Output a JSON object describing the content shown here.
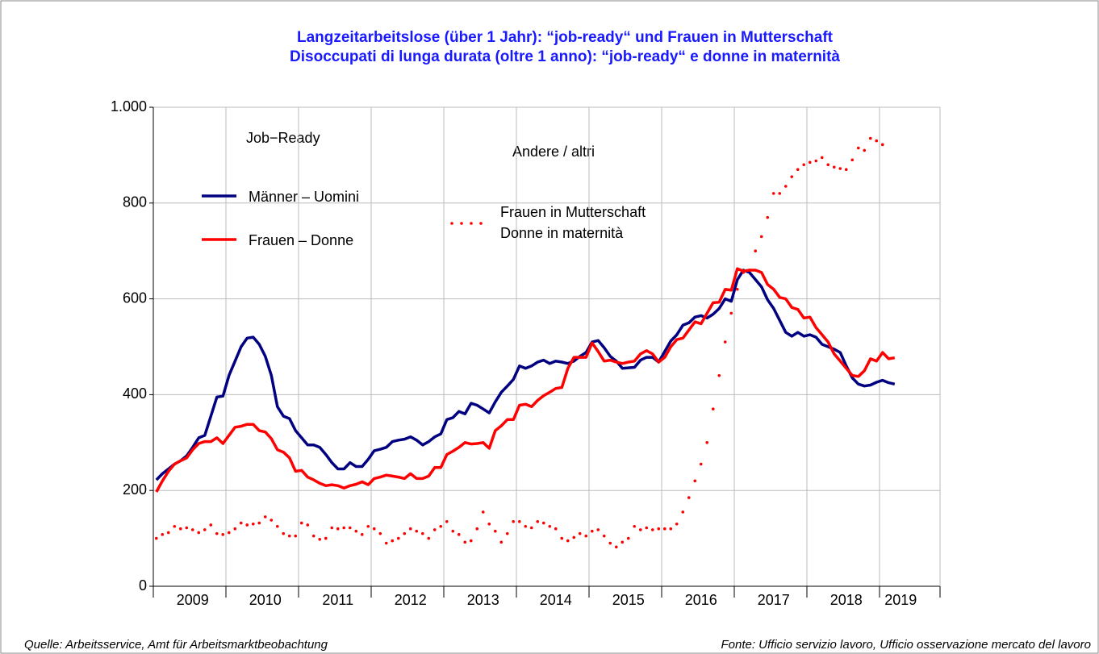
{
  "chart_data": {
    "type": "line",
    "title": "Langzeitarbeitslose (über 1 Jahr): “job-ready“ und Frauen in Mutterschaft",
    "subtitle": "Disoccupati di lunga durata (oltre 1 anno): “job-ready“ e donne in maternità",
    "legend_groups": [
      "Job−Ready",
      "Andere / altri"
    ],
    "source_left": "Quelle: Arbeitsservice, Amt für Arbeitsmarktbeobachtung",
    "source_right": "Fonte: Ufficio servizio lavoro, Ufficio osservazione mercato del lavoro",
    "categories": [
      null,
      null,
      null,
      null,
      null,
      null,
      "2009",
      null,
      null,
      null,
      null,
      null,
      null,
      null,
      null,
      null,
      null,
      null,
      "2010",
      null,
      null,
      null,
      null,
      null,
      null,
      null,
      null,
      null,
      null,
      null,
      "2011",
      null,
      null,
      null,
      null,
      null,
      null,
      null,
      null,
      null,
      null,
      null,
      "2012",
      null,
      null,
      null,
      null,
      null,
      null,
      null,
      null,
      null,
      null,
      null,
      "2013",
      null,
      null,
      null,
      null,
      null,
      null,
      null,
      null,
      null,
      null,
      null,
      "2014",
      null,
      null,
      null,
      null,
      null,
      null,
      null,
      null,
      null,
      null,
      null,
      "2015",
      null,
      null,
      null,
      null,
      null,
      null,
      null,
      null,
      null,
      null,
      null,
      "2016",
      null,
      null,
      null,
      null,
      null,
      null,
      null,
      null,
      null,
      null,
      null,
      "2017",
      null,
      null,
      null,
      null,
      null,
      null,
      null,
      null,
      null,
      null,
      null,
      "2018",
      null,
      null,
      null,
      null,
      null,
      null,
      null,
      null,
      "2019",
      null,
      null,
      null,
      null,
      null,
      null
    ],
    "series": [
      {
        "name": "Männer – Uomini",
        "color": "#000080",
        "style": "solid",
        "values": [
          222,
          235,
          245,
          255,
          262,
          272,
          290,
          310,
          315,
          355,
          395,
          397,
          440,
          470,
          500,
          518,
          520,
          505,
          480,
          440,
          375,
          355,
          350,
          325,
          310,
          295,
          295,
          290,
          275,
          258,
          245,
          245,
          258,
          250,
          250,
          265,
          283,
          286,
          290,
          302,
          305,
          307,
          312,
          305,
          295,
          302,
          312,
          318,
          348,
          352,
          365,
          360,
          382,
          378,
          370,
          362,
          385,
          405,
          418,
          432,
          460,
          455,
          460,
          468,
          472,
          465,
          470,
          468,
          465,
          470,
          480,
          488,
          510,
          513,
          498,
          480,
          470,
          455,
          456,
          457,
          472,
          478,
          478,
          468,
          490,
          512,
          525,
          545,
          550,
          562,
          565,
          560,
          568,
          580,
          600,
          595,
          640,
          660,
          655,
          640,
          625,
          598,
          580,
          555,
          530,
          522,
          530,
          522,
          525,
          520,
          505,
          500,
          495,
          488,
          460,
          435,
          422,
          418,
          420,
          426,
          430,
          425,
          422,
          null,
          null,
          null,
          null,
          null,
          null,
          null
        ]
      },
      {
        "name": "Frauen – Donne",
        "color": "#ff0000",
        "style": "solid",
        "values": [
          197,
          220,
          240,
          255,
          262,
          268,
          285,
          298,
          302,
          302,
          310,
          298,
          315,
          332,
          334,
          338,
          338,
          325,
          322,
          308,
          285,
          280,
          268,
          240,
          242,
          228,
          222,
          215,
          210,
          212,
          210,
          205,
          210,
          213,
          218,
          212,
          225,
          228,
          232,
          230,
          228,
          225,
          235,
          225,
          225,
          230,
          248,
          248,
          275,
          282,
          290,
          300,
          297,
          298,
          300,
          288,
          325,
          335,
          348,
          348,
          378,
          380,
          375,
          388,
          398,
          405,
          413,
          415,
          455,
          478,
          478,
          478,
          508,
          490,
          470,
          472,
          468,
          465,
          468,
          470,
          485,
          492,
          485,
          468,
          478,
          500,
          515,
          518,
          535,
          552,
          548,
          570,
          592,
          593,
          620,
          618,
          663,
          658,
          660,
          660,
          655,
          630,
          620,
          603,
          600,
          582,
          578,
          560,
          562,
          540,
          525,
          510,
          485,
          470,
          455,
          440,
          438,
          450,
          475,
          470,
          488,
          475,
          477,
          null,
          null,
          null,
          null,
          null,
          null,
          null
        ]
      },
      {
        "name": "Frauen in Mutterschaft\nDonne in maternità",
        "color": "#ff0000",
        "style": "dotted",
        "values": [
          100,
          108,
          112,
          125,
          120,
          122,
          118,
          112,
          118,
          128,
          110,
          108,
          112,
          120,
          132,
          128,
          130,
          132,
          145,
          138,
          125,
          110,
          105,
          105,
          132,
          128,
          105,
          98,
          100,
          122,
          120,
          122,
          122,
          115,
          108,
          125,
          120,
          110,
          90,
          95,
          100,
          110,
          120,
          115,
          110,
          100,
          118,
          125,
          135,
          115,
          108,
          92,
          95,
          120,
          155,
          130,
          115,
          92,
          110,
          135,
          135,
          125,
          122,
          135,
          132,
          125,
          120,
          100,
          95,
          102,
          110,
          105,
          115,
          118,
          105,
          90,
          82,
          92,
          100,
          125,
          118,
          122,
          118,
          120,
          120,
          120,
          130,
          155,
          185,
          220,
          255,
          300,
          370,
          440,
          510,
          570,
          620,
          655,
          660,
          700,
          730,
          770,
          820,
          820,
          835,
          855,
          870,
          880,
          885,
          888,
          895,
          880,
          875,
          872,
          870,
          890,
          915,
          910,
          935,
          930,
          922,
          null,
          null,
          null,
          null,
          null,
          null,
          null,
          null,
          null
        ]
      }
    ],
    "ylim": [
      0,
      1000
    ],
    "yticks": [
      0,
      200,
      400,
      600,
      800,
      {
        "value": 1000,
        "label": "1.000"
      }
    ],
    "grid": true
  }
}
